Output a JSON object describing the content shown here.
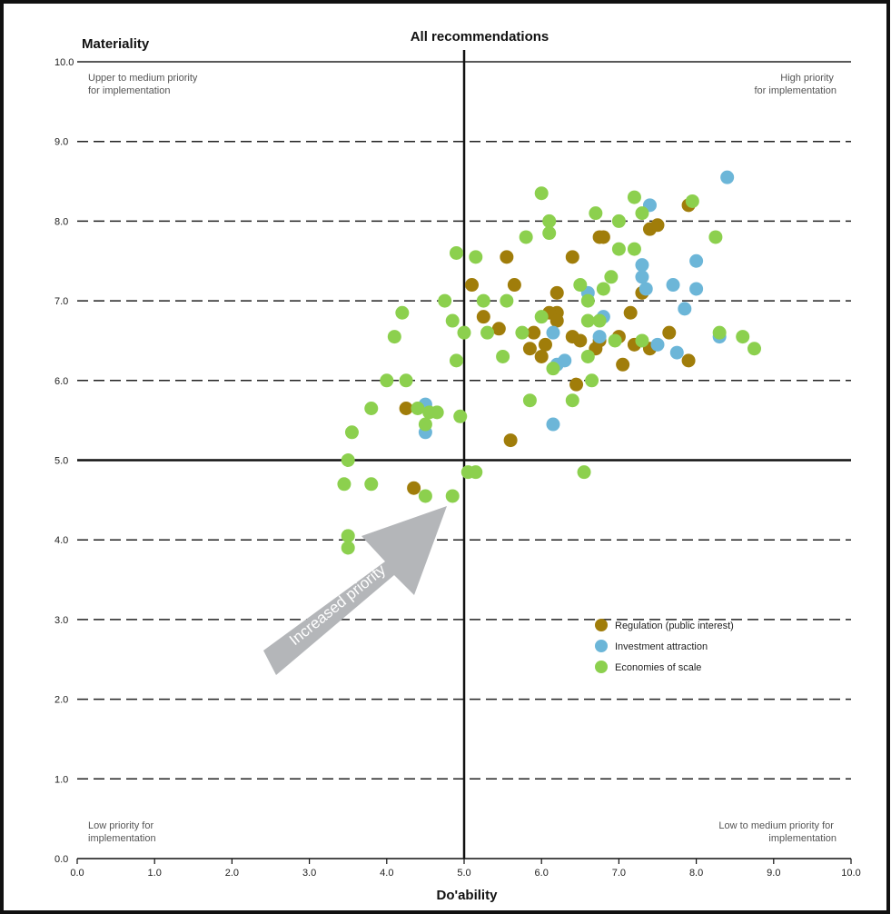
{
  "chart_data": {
    "type": "scatter",
    "title": "All recommendations",
    "xlabel": "Do'ability",
    "ylabel": "Materiality",
    "xlim": [
      0,
      10
    ],
    "ylim": [
      0,
      10
    ],
    "xticks": [
      "0.0",
      "1.0",
      "2.0",
      "3.0",
      "4.0",
      "5.0",
      "6.0",
      "7.0",
      "8.0",
      "9.0",
      "10.0"
    ],
    "yticks": [
      "0.0",
      "1.0",
      "2.0",
      "3.0",
      "4.0",
      "5.0",
      "6.0",
      "7.0",
      "8.0",
      "9.0",
      "10.0"
    ],
    "grid": "horizontal dashed",
    "dividers": {
      "x": 5.0,
      "y": 5.0
    },
    "quadrant_labels": {
      "top_left": [
        "Upper to medium priority",
        "for implementation"
      ],
      "top_right": [
        "High priority",
        "for implementation"
      ],
      "bottom_left": [
        "Low priority for",
        "implementation"
      ],
      "bottom_right": [
        "Low to medium priority for",
        "implementation"
      ]
    },
    "annotation": "Increased priority",
    "legend_position": "lower-right",
    "colors": {
      "regulation": "#a07d0a",
      "investment": "#6cb6d8",
      "economies": "#8cd04e",
      "arrow": "#b4b6b9"
    },
    "series": [
      {
        "name": "Regulation (public interest)",
        "color_key": "regulation",
        "points": [
          [
            7.9,
            8.2
          ],
          [
            7.4,
            7.9
          ],
          [
            7.5,
            7.95
          ],
          [
            6.8,
            7.8
          ],
          [
            6.75,
            7.8
          ],
          [
            6.4,
            7.55
          ],
          [
            5.55,
            7.55
          ],
          [
            5.1,
            7.2
          ],
          [
            5.65,
            7.2
          ],
          [
            6.2,
            7.1
          ],
          [
            7.3,
            7.1
          ],
          [
            6.2,
            6.85
          ],
          [
            5.25,
            6.8
          ],
          [
            6.1,
            6.85
          ],
          [
            6.2,
            6.75
          ],
          [
            7.15,
            6.85
          ],
          [
            5.45,
            6.65
          ],
          [
            5.9,
            6.6
          ],
          [
            6.4,
            6.55
          ],
          [
            6.05,
            6.45
          ],
          [
            6.5,
            6.5
          ],
          [
            6.75,
            6.5
          ],
          [
            7.0,
            6.55
          ],
          [
            5.85,
            6.4
          ],
          [
            6.7,
            6.4
          ],
          [
            7.65,
            6.6
          ],
          [
            7.2,
            6.45
          ],
          [
            6.0,
            6.3
          ],
          [
            7.4,
            6.4
          ],
          [
            7.05,
            6.2
          ],
          [
            7.9,
            6.25
          ],
          [
            6.45,
            5.95
          ],
          [
            4.25,
            5.65
          ],
          [
            5.6,
            5.25
          ],
          [
            4.35,
            4.65
          ]
        ]
      },
      {
        "name": "Investment attraction",
        "color_key": "investment",
        "points": [
          [
            8.4,
            8.55
          ],
          [
            7.4,
            8.2
          ],
          [
            8.0,
            7.5
          ],
          [
            7.3,
            7.45
          ],
          [
            7.3,
            7.3
          ],
          [
            7.35,
            7.15
          ],
          [
            7.7,
            7.2
          ],
          [
            8.0,
            7.15
          ],
          [
            6.6,
            7.1
          ],
          [
            6.8,
            6.8
          ],
          [
            6.75,
            6.55
          ],
          [
            6.15,
            6.6
          ],
          [
            8.3,
            6.55
          ],
          [
            7.5,
            6.45
          ],
          [
            7.75,
            6.35
          ],
          [
            6.3,
            6.25
          ],
          [
            6.2,
            6.2
          ],
          [
            4.5,
            5.7
          ],
          [
            4.5,
            5.35
          ],
          [
            6.15,
            5.45
          ],
          [
            7.85,
            6.9
          ]
        ]
      },
      {
        "name": "Economies of scale",
        "color_key": "economies",
        "points": [
          [
            6.0,
            8.35
          ],
          [
            7.2,
            8.3
          ],
          [
            7.95,
            8.25
          ],
          [
            6.1,
            8.0
          ],
          [
            6.7,
            8.1
          ],
          [
            7.3,
            8.1
          ],
          [
            6.1,
            7.85
          ],
          [
            7.0,
            8.0
          ],
          [
            5.8,
            7.8
          ],
          [
            7.2,
            7.65
          ],
          [
            7.0,
            7.65
          ],
          [
            8.25,
            7.8
          ],
          [
            4.9,
            7.6
          ],
          [
            5.15,
            7.55
          ],
          [
            6.9,
            7.3
          ],
          [
            6.5,
            7.2
          ],
          [
            6.8,
            7.15
          ],
          [
            4.75,
            7.0
          ],
          [
            5.25,
            7.0
          ],
          [
            5.55,
            7.0
          ],
          [
            6.6,
            7.0
          ],
          [
            4.2,
            6.85
          ],
          [
            4.85,
            6.75
          ],
          [
            6.0,
            6.8
          ],
          [
            6.6,
            6.75
          ],
          [
            6.75,
            6.75
          ],
          [
            5.0,
            6.6
          ],
          [
            5.3,
            6.6
          ],
          [
            5.75,
            6.6
          ],
          [
            4.1,
            6.55
          ],
          [
            6.95,
            6.5
          ],
          [
            7.3,
            6.5
          ],
          [
            8.3,
            6.6
          ],
          [
            8.6,
            6.55
          ],
          [
            8.75,
            6.4
          ],
          [
            6.6,
            6.3
          ],
          [
            5.5,
            6.3
          ],
          [
            4.9,
            6.25
          ],
          [
            6.15,
            6.15
          ],
          [
            4.0,
            6.0
          ],
          [
            4.25,
            6.0
          ],
          [
            6.65,
            6.0
          ],
          [
            5.85,
            5.75
          ],
          [
            6.4,
            5.75
          ],
          [
            3.8,
            5.65
          ],
          [
            4.4,
            5.65
          ],
          [
            4.55,
            5.6
          ],
          [
            4.65,
            5.6
          ],
          [
            4.95,
            5.55
          ],
          [
            4.5,
            5.45
          ],
          [
            3.55,
            5.35
          ],
          [
            3.5,
            5.0
          ],
          [
            5.05,
            4.85
          ],
          [
            5.15,
            4.85
          ],
          [
            6.55,
            4.85
          ],
          [
            3.45,
            4.7
          ],
          [
            3.8,
            4.7
          ],
          [
            4.5,
            4.55
          ],
          [
            4.85,
            4.55
          ],
          [
            3.5,
            4.05
          ],
          [
            3.5,
            3.9
          ]
        ]
      }
    ]
  }
}
